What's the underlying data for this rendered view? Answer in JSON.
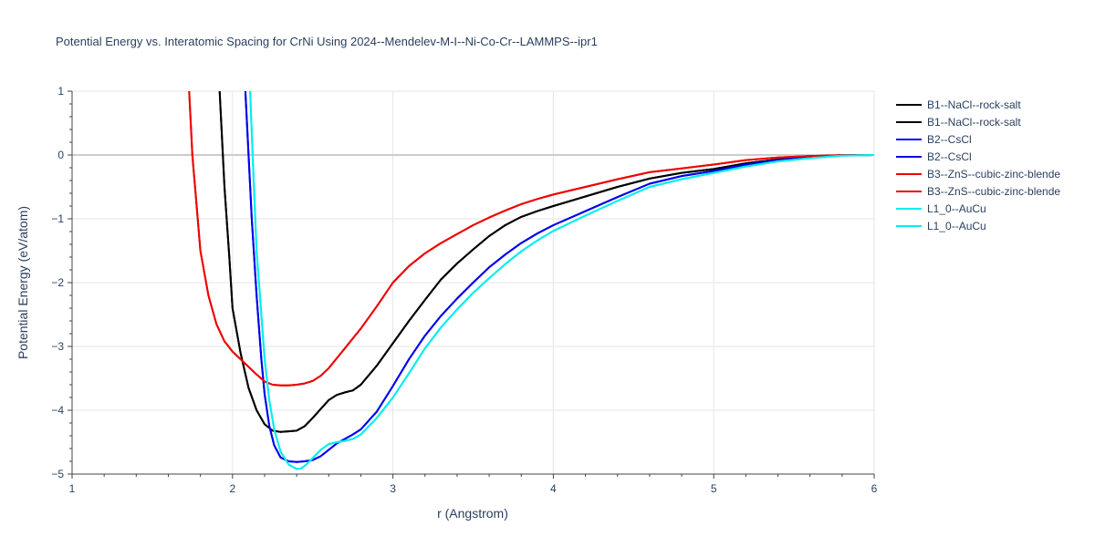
{
  "chart_data": {
    "type": "line",
    "title": "Potential Energy vs. Interatomic Spacing for CrNi Using 2024--Mendelev-M-I--Ni-Co-Cr--LAMMPS--ipr1",
    "xlabel": "r (Angstrom)",
    "ylabel": "Potential Energy (eV/atom)",
    "xlim": [
      1,
      6
    ],
    "ylim": [
      -5,
      1
    ],
    "xticks": [
      1,
      2,
      3,
      4,
      5,
      6
    ],
    "yticks": [
      1,
      0,
      -1,
      -2,
      -3,
      -4,
      -5
    ],
    "xtick_labels": [
      "1",
      "2",
      "3",
      "4",
      "5",
      "6"
    ],
    "ytick_labels": [
      "1",
      "0",
      "−1",
      "−2",
      "−3",
      "−4",
      "−5"
    ],
    "grid": true,
    "legend_position": "top-right",
    "series": [
      {
        "name": "B1--NaCl--rock-salt",
        "color": "#000000",
        "x": [
          1.92,
          1.95,
          1.98,
          2.0,
          2.05,
          2.1,
          2.15,
          2.2,
          2.25,
          2.3,
          2.35,
          2.4,
          2.45,
          2.5,
          2.55,
          2.6,
          2.65,
          2.7,
          2.75,
          2.8,
          2.9,
          3.0,
          3.1,
          3.2,
          3.3,
          3.4,
          3.5,
          3.6,
          3.7,
          3.8,
          3.9,
          4.0,
          4.2,
          4.4,
          4.6,
          4.8,
          5.0,
          5.2,
          5.4,
          5.6,
          5.8,
          6.0
        ],
        "y": [
          1.0,
          -0.5,
          -1.6,
          -2.4,
          -3.1,
          -3.65,
          -4.0,
          -4.22,
          -4.32,
          -4.34,
          -4.33,
          -4.32,
          -4.25,
          -4.12,
          -3.98,
          -3.84,
          -3.76,
          -3.72,
          -3.69,
          -3.6,
          -3.3,
          -2.95,
          -2.6,
          -2.27,
          -1.95,
          -1.7,
          -1.48,
          -1.27,
          -1.1,
          -0.97,
          -0.88,
          -0.8,
          -0.65,
          -0.5,
          -0.37,
          -0.28,
          -0.22,
          -0.13,
          -0.07,
          -0.03,
          -0.005,
          0.0
        ]
      },
      {
        "name": "B1--NaCl--rock-salt",
        "color": "#000000",
        "x": [
          1.92,
          1.95,
          1.98,
          2.0,
          2.05,
          2.1,
          2.15,
          2.2,
          2.25,
          2.3,
          2.35,
          2.4,
          2.45,
          2.5,
          2.55,
          2.6,
          2.65,
          2.7,
          2.75,
          2.8,
          2.9,
          3.0,
          3.1,
          3.2,
          3.3,
          3.4,
          3.5,
          3.6,
          3.7,
          3.8,
          3.9,
          4.0,
          4.2,
          4.4,
          4.6,
          4.8,
          5.0,
          5.2,
          5.4,
          5.6,
          5.8,
          6.0
        ],
        "y": [
          1.0,
          -0.5,
          -1.6,
          -2.4,
          -3.1,
          -3.65,
          -4.0,
          -4.22,
          -4.32,
          -4.34,
          -4.33,
          -4.32,
          -4.25,
          -4.12,
          -3.98,
          -3.84,
          -3.76,
          -3.72,
          -3.69,
          -3.6,
          -3.3,
          -2.95,
          -2.6,
          -2.27,
          -1.95,
          -1.7,
          -1.48,
          -1.27,
          -1.1,
          -0.97,
          -0.88,
          -0.8,
          -0.65,
          -0.5,
          -0.37,
          -0.28,
          -0.22,
          -0.13,
          -0.07,
          -0.03,
          -0.005,
          0.0
        ]
      },
      {
        "name": "B2--CsCl",
        "color": "#0000ee",
        "x": [
          2.08,
          2.1,
          2.12,
          2.15,
          2.18,
          2.2,
          2.23,
          2.26,
          2.3,
          2.35,
          2.4,
          2.45,
          2.5,
          2.55,
          2.6,
          2.65,
          2.7,
          2.75,
          2.8,
          2.9,
          3.0,
          3.1,
          3.2,
          3.3,
          3.4,
          3.5,
          3.6,
          3.7,
          3.8,
          3.9,
          4.0,
          4.2,
          4.4,
          4.6,
          4.8,
          5.0,
          5.2,
          5.4,
          5.6,
          5.8,
          6.0
        ],
        "y": [
          1.0,
          0.0,
          -1.0,
          -2.2,
          -3.2,
          -3.75,
          -4.25,
          -4.55,
          -4.74,
          -4.8,
          -4.81,
          -4.8,
          -4.78,
          -4.72,
          -4.62,
          -4.52,
          -4.45,
          -4.38,
          -4.3,
          -4.02,
          -3.62,
          -3.2,
          -2.83,
          -2.52,
          -2.25,
          -2.0,
          -1.76,
          -1.56,
          -1.38,
          -1.23,
          -1.1,
          -0.88,
          -0.66,
          -0.45,
          -0.33,
          -0.25,
          -0.15,
          -0.08,
          -0.03,
          -0.005,
          0.0
        ]
      },
      {
        "name": "B2--CsCl",
        "color": "#0000ee",
        "x": [
          2.08,
          2.1,
          2.12,
          2.15,
          2.18,
          2.2,
          2.23,
          2.26,
          2.3,
          2.35,
          2.4,
          2.45,
          2.5,
          2.55,
          2.6,
          2.65,
          2.7,
          2.75,
          2.8,
          2.9,
          3.0,
          3.1,
          3.2,
          3.3,
          3.4,
          3.5,
          3.6,
          3.7,
          3.8,
          3.9,
          4.0,
          4.2,
          4.4,
          4.6,
          4.8,
          5.0,
          5.2,
          5.4,
          5.6,
          5.8,
          6.0
        ],
        "y": [
          1.0,
          0.0,
          -1.0,
          -2.2,
          -3.2,
          -3.75,
          -4.25,
          -4.55,
          -4.74,
          -4.8,
          -4.81,
          -4.8,
          -4.78,
          -4.72,
          -4.62,
          -4.52,
          -4.45,
          -4.38,
          -4.3,
          -4.02,
          -3.62,
          -3.2,
          -2.83,
          -2.52,
          -2.25,
          -2.0,
          -1.76,
          -1.56,
          -1.38,
          -1.23,
          -1.1,
          -0.88,
          -0.66,
          -0.45,
          -0.33,
          -0.25,
          -0.15,
          -0.08,
          -0.03,
          -0.005,
          0.0
        ]
      },
      {
        "name": "B3--ZnS--cubic-zinc-blende",
        "color": "#ee0000",
        "x": [
          1.73,
          1.75,
          1.78,
          1.8,
          1.85,
          1.9,
          1.95,
          2.0,
          2.05,
          2.1,
          2.15,
          2.2,
          2.25,
          2.3,
          2.35,
          2.4,
          2.45,
          2.5,
          2.55,
          2.6,
          2.7,
          2.8,
          2.9,
          3.0,
          3.1,
          3.2,
          3.3,
          3.4,
          3.5,
          3.6,
          3.7,
          3.8,
          3.9,
          4.0,
          4.2,
          4.4,
          4.6,
          4.8,
          5.0,
          5.2,
          5.4,
          5.6,
          5.8,
          6.0
        ],
        "y": [
          1.0,
          0.0,
          -0.9,
          -1.5,
          -2.2,
          -2.65,
          -2.92,
          -3.08,
          -3.2,
          -3.32,
          -3.44,
          -3.55,
          -3.6,
          -3.61,
          -3.61,
          -3.6,
          -3.58,
          -3.54,
          -3.46,
          -3.34,
          -3.03,
          -2.72,
          -2.37,
          -2.0,
          -1.74,
          -1.54,
          -1.38,
          -1.24,
          -1.1,
          -0.98,
          -0.87,
          -0.77,
          -0.69,
          -0.62,
          -0.5,
          -0.38,
          -0.27,
          -0.21,
          -0.15,
          -0.08,
          -0.04,
          -0.015,
          -0.003,
          0.0
        ]
      },
      {
        "name": "B3--ZnS--cubic-zinc-blende",
        "color": "#ee0000",
        "x": [
          1.73,
          1.75,
          1.78,
          1.8,
          1.85,
          1.9,
          1.95,
          2.0,
          2.05,
          2.1,
          2.15,
          2.2,
          2.25,
          2.3,
          2.35,
          2.4,
          2.45,
          2.5,
          2.55,
          2.6,
          2.7,
          2.8,
          2.9,
          3.0,
          3.1,
          3.2,
          3.3,
          3.4,
          3.5,
          3.6,
          3.7,
          3.8,
          3.9,
          4.0,
          4.2,
          4.4,
          4.6,
          4.8,
          5.0,
          5.2,
          5.4,
          5.6,
          5.8,
          6.0
        ],
        "y": [
          1.0,
          0.0,
          -0.9,
          -1.5,
          -2.2,
          -2.65,
          -2.92,
          -3.08,
          -3.2,
          -3.32,
          -3.44,
          -3.55,
          -3.6,
          -3.61,
          -3.61,
          -3.6,
          -3.58,
          -3.54,
          -3.46,
          -3.34,
          -3.03,
          -2.72,
          -2.37,
          -2.0,
          -1.74,
          -1.54,
          -1.38,
          -1.24,
          -1.1,
          -0.98,
          -0.87,
          -0.77,
          -0.69,
          -0.62,
          -0.5,
          -0.38,
          -0.27,
          -0.21,
          -0.15,
          -0.08,
          -0.04,
          -0.015,
          -0.003,
          0.0
        ]
      },
      {
        "name": "L1_0--AuCu",
        "color": "#00eeee",
        "x": [
          2.11,
          2.13,
          2.15,
          2.18,
          2.2,
          2.23,
          2.26,
          2.3,
          2.35,
          2.4,
          2.43,
          2.46,
          2.5,
          2.55,
          2.6,
          2.65,
          2.7,
          2.75,
          2.8,
          2.9,
          3.0,
          3.1,
          3.2,
          3.3,
          3.4,
          3.5,
          3.6,
          3.7,
          3.8,
          3.9,
          4.0,
          4.2,
          4.4,
          4.6,
          4.8,
          5.0,
          5.2,
          5.4,
          5.6,
          5.8,
          6.0
        ],
        "y": [
          1.0,
          -0.3,
          -1.5,
          -2.5,
          -3.2,
          -3.85,
          -4.3,
          -4.65,
          -4.85,
          -4.92,
          -4.91,
          -4.85,
          -4.75,
          -4.62,
          -4.53,
          -4.5,
          -4.48,
          -4.45,
          -4.38,
          -4.12,
          -3.8,
          -3.42,
          -3.03,
          -2.7,
          -2.42,
          -2.16,
          -1.93,
          -1.71,
          -1.51,
          -1.34,
          -1.19,
          -0.95,
          -0.72,
          -0.5,
          -0.38,
          -0.28,
          -0.18,
          -0.1,
          -0.05,
          -0.01,
          0.0
        ]
      },
      {
        "name": "L1_0--AuCu",
        "color": "#00eeee",
        "x": [
          2.11,
          2.13,
          2.15,
          2.18,
          2.2,
          2.23,
          2.26,
          2.3,
          2.35,
          2.4,
          2.43,
          2.46,
          2.5,
          2.55,
          2.6,
          2.65,
          2.7,
          2.75,
          2.8,
          2.9,
          3.0,
          3.1,
          3.2,
          3.3,
          3.4,
          3.5,
          3.6,
          3.7,
          3.8,
          3.9,
          4.0,
          4.2,
          4.4,
          4.6,
          4.8,
          5.0,
          5.2,
          5.4,
          5.6,
          5.8,
          6.0
        ],
        "y": [
          1.0,
          -0.3,
          -1.5,
          -2.5,
          -3.2,
          -3.85,
          -4.3,
          -4.65,
          -4.85,
          -4.92,
          -4.91,
          -4.85,
          -4.75,
          -4.62,
          -4.53,
          -4.5,
          -4.48,
          -4.45,
          -4.38,
          -4.12,
          -3.8,
          -3.42,
          -3.03,
          -2.7,
          -2.42,
          -2.16,
          -1.93,
          -1.71,
          -1.51,
          -1.34,
          -1.19,
          -0.95,
          -0.72,
          -0.5,
          -0.38,
          -0.28,
          -0.18,
          -0.1,
          -0.05,
          -0.01,
          0.0
        ]
      }
    ]
  }
}
